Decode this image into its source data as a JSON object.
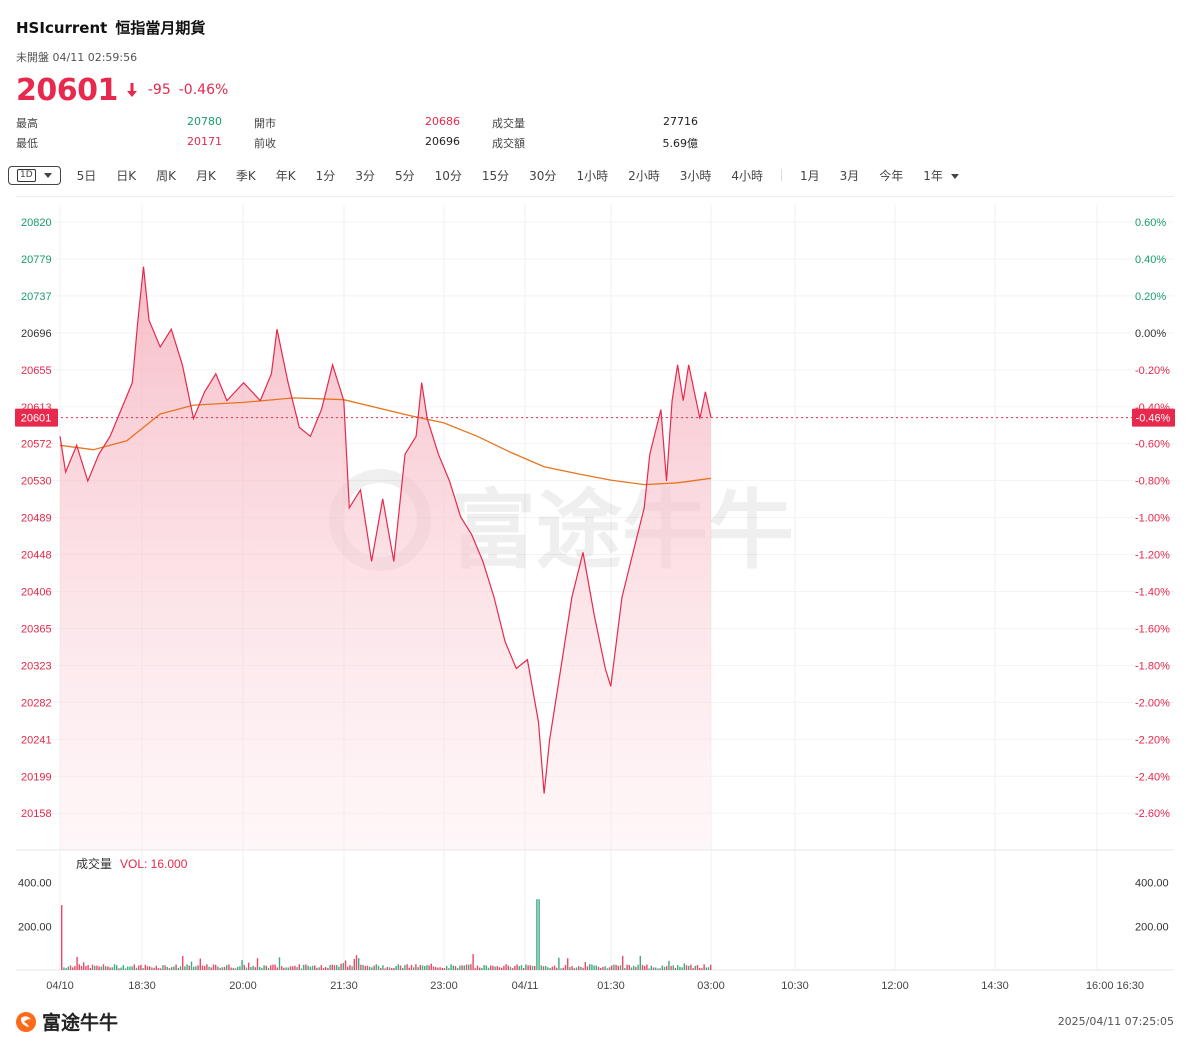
{
  "header": {
    "symbol": "HSIcurrent",
    "name": "恒指當月期貨",
    "status": "未開盤 04/11 02:59:56",
    "price": "20601",
    "change": "-95",
    "change_pct": "-0.46%"
  },
  "stats": {
    "high_label": "最高",
    "high_value": "20780",
    "low_label": "最低",
    "low_value": "20171",
    "open_label": "開市",
    "open_value": "20686",
    "prev_label": "前收",
    "prev_value": "20696",
    "vol_label": "成交量",
    "vol_value": "27716",
    "amt_label": "成交額",
    "amt_value": "5.69億"
  },
  "tabs": {
    "active": "1D",
    "items": [
      "5日",
      "日K",
      "周K",
      "月K",
      "季K",
      "年K",
      "1分",
      "3分",
      "5分",
      "10分",
      "15分",
      "30分",
      "1小時",
      "2小時",
      "3小時",
      "4小時"
    ],
    "ranges": [
      "1月",
      "3月",
      "今年",
      "1年"
    ]
  },
  "colors": {
    "up": "#1a9e6a",
    "down": "#e6294c",
    "avg_line": "#e8741f",
    "fill": "#fbe3e8"
  },
  "chart_data": {
    "type": "line",
    "prev_close": 20696,
    "current_price": 20601,
    "current_pct_label": "-0.46%",
    "ylim": [
      20158,
      20820
    ],
    "y_ticks": [
      "20820",
      "20779",
      "20737",
      "20696",
      "20655",
      "20613",
      "20572",
      "20530",
      "20489",
      "20448",
      "20406",
      "20365",
      "20323",
      "20282",
      "20241",
      "20199",
      "20158"
    ],
    "pct_ticks": [
      "0.60%",
      "0.40%",
      "0.20%",
      "0.00%",
      "-0.20%",
      "-0.40%",
      "-0.60%",
      "-0.80%",
      "-1.00%",
      "-1.20%",
      "-1.40%",
      "-1.60%",
      "-1.80%",
      "-2.00%",
      "-2.20%",
      "-2.40%",
      "-2.60%"
    ],
    "x_ticks": [
      "04/10",
      "18:30",
      "20:00",
      "21:30",
      "23:00",
      "04/11",
      "01:30",
      "03:00",
      "10:30",
      "12:00",
      "14:30",
      "16:00 16:30"
    ],
    "volume_label": "成交量",
    "volume_legend": "VOL: 16.000",
    "vol_ticks": [
      "400.00",
      "200.00"
    ],
    "vol_ylim": [
      0,
      400
    ],
    "price": [
      {
        "t": "17:15",
        "v": 20580
      },
      {
        "t": "17:20",
        "v": 20540
      },
      {
        "t": "17:30",
        "v": 20570
      },
      {
        "t": "17:40",
        "v": 20530
      },
      {
        "t": "17:50",
        "v": 20560
      },
      {
        "t": "18:00",
        "v": 20580
      },
      {
        "t": "18:10",
        "v": 20610
      },
      {
        "t": "18:20",
        "v": 20640
      },
      {
        "t": "18:25",
        "v": 20710
      },
      {
        "t": "18:30",
        "v": 20770
      },
      {
        "t": "18:35",
        "v": 20710
      },
      {
        "t": "18:45",
        "v": 20680
      },
      {
        "t": "18:55",
        "v": 20700
      },
      {
        "t": "19:05",
        "v": 20660
      },
      {
        "t": "19:15",
        "v": 20600
      },
      {
        "t": "19:25",
        "v": 20630
      },
      {
        "t": "19:35",
        "v": 20650
      },
      {
        "t": "19:45",
        "v": 20620
      },
      {
        "t": "20:00",
        "v": 20640
      },
      {
        "t": "20:15",
        "v": 20620
      },
      {
        "t": "20:25",
        "v": 20650
      },
      {
        "t": "20:30",
        "v": 20700
      },
      {
        "t": "20:40",
        "v": 20640
      },
      {
        "t": "20:50",
        "v": 20590
      },
      {
        "t": "21:00",
        "v": 20580
      },
      {
        "t": "21:10",
        "v": 20610
      },
      {
        "t": "21:20",
        "v": 20660
      },
      {
        "t": "21:30",
        "v": 20620
      },
      {
        "t": "21:35",
        "v": 20500
      },
      {
        "t": "21:45",
        "v": 20520
      },
      {
        "t": "21:55",
        "v": 20440
      },
      {
        "t": "22:05",
        "v": 20510
      },
      {
        "t": "22:15",
        "v": 20440
      },
      {
        "t": "22:25",
        "v": 20560
      },
      {
        "t": "22:35",
        "v": 20580
      },
      {
        "t": "22:40",
        "v": 20640
      },
      {
        "t": "22:45",
        "v": 20600
      },
      {
        "t": "22:55",
        "v": 20560
      },
      {
        "t": "23:05",
        "v": 20530
      },
      {
        "t": "23:15",
        "v": 20490
      },
      {
        "t": "23:25",
        "v": 20470
      },
      {
        "t": "23:35",
        "v": 20440
      },
      {
        "t": "23:45",
        "v": 20400
      },
      {
        "t": "23:55",
        "v": 20350
      },
      {
        "t": "00:05",
        "v": 20320
      },
      {
        "t": "00:15",
        "v": 20330
      },
      {
        "t": "00:25",
        "v": 20260
      },
      {
        "t": "00:30",
        "v": 20180
      },
      {
        "t": "00:35",
        "v": 20240
      },
      {
        "t": "00:45",
        "v": 20320
      },
      {
        "t": "00:55",
        "v": 20400
      },
      {
        "t": "01:05",
        "v": 20450
      },
      {
        "t": "01:15",
        "v": 20380
      },
      {
        "t": "01:25",
        "v": 20320
      },
      {
        "t": "01:30",
        "v": 20300
      },
      {
        "t": "01:40",
        "v": 20400
      },
      {
        "t": "01:50",
        "v": 20450
      },
      {
        "t": "02:00",
        "v": 20500
      },
      {
        "t": "02:05",
        "v": 20560
      },
      {
        "t": "02:15",
        "v": 20610
      },
      {
        "t": "02:20",
        "v": 20530
      },
      {
        "t": "02:25",
        "v": 20620
      },
      {
        "t": "02:30",
        "v": 20660
      },
      {
        "t": "02:35",
        "v": 20620
      },
      {
        "t": "02:40",
        "v": 20660
      },
      {
        "t": "02:50",
        "v": 20600
      },
      {
        "t": "02:55",
        "v": 20630
      },
      {
        "t": "03:00",
        "v": 20601
      }
    ],
    "avg_line": [
      {
        "t": "17:15",
        "v": 20570
      },
      {
        "t": "17:45",
        "v": 20565
      },
      {
        "t": "18:15",
        "v": 20575
      },
      {
        "t": "18:45",
        "v": 20605
      },
      {
        "t": "19:15",
        "v": 20615
      },
      {
        "t": "20:00",
        "v": 20618
      },
      {
        "t": "20:45",
        "v": 20623
      },
      {
        "t": "21:30",
        "v": 20621
      },
      {
        "t": "22:00",
        "v": 20612
      },
      {
        "t": "22:30",
        "v": 20603
      },
      {
        "t": "23:00",
        "v": 20595
      },
      {
        "t": "23:30",
        "v": 20580
      },
      {
        "t": "00:00",
        "v": 20562
      },
      {
        "t": "00:30",
        "v": 20546
      },
      {
        "t": "01:00",
        "v": 20538
      },
      {
        "t": "01:30",
        "v": 20531
      },
      {
        "t": "02:00",
        "v": 20526
      },
      {
        "t": "02:30",
        "v": 20528
      },
      {
        "t": "03:00",
        "v": 20533
      }
    ]
  },
  "footer": {
    "brand": "富途牛牛",
    "timestamp": "2025/04/11 07:25:05"
  }
}
